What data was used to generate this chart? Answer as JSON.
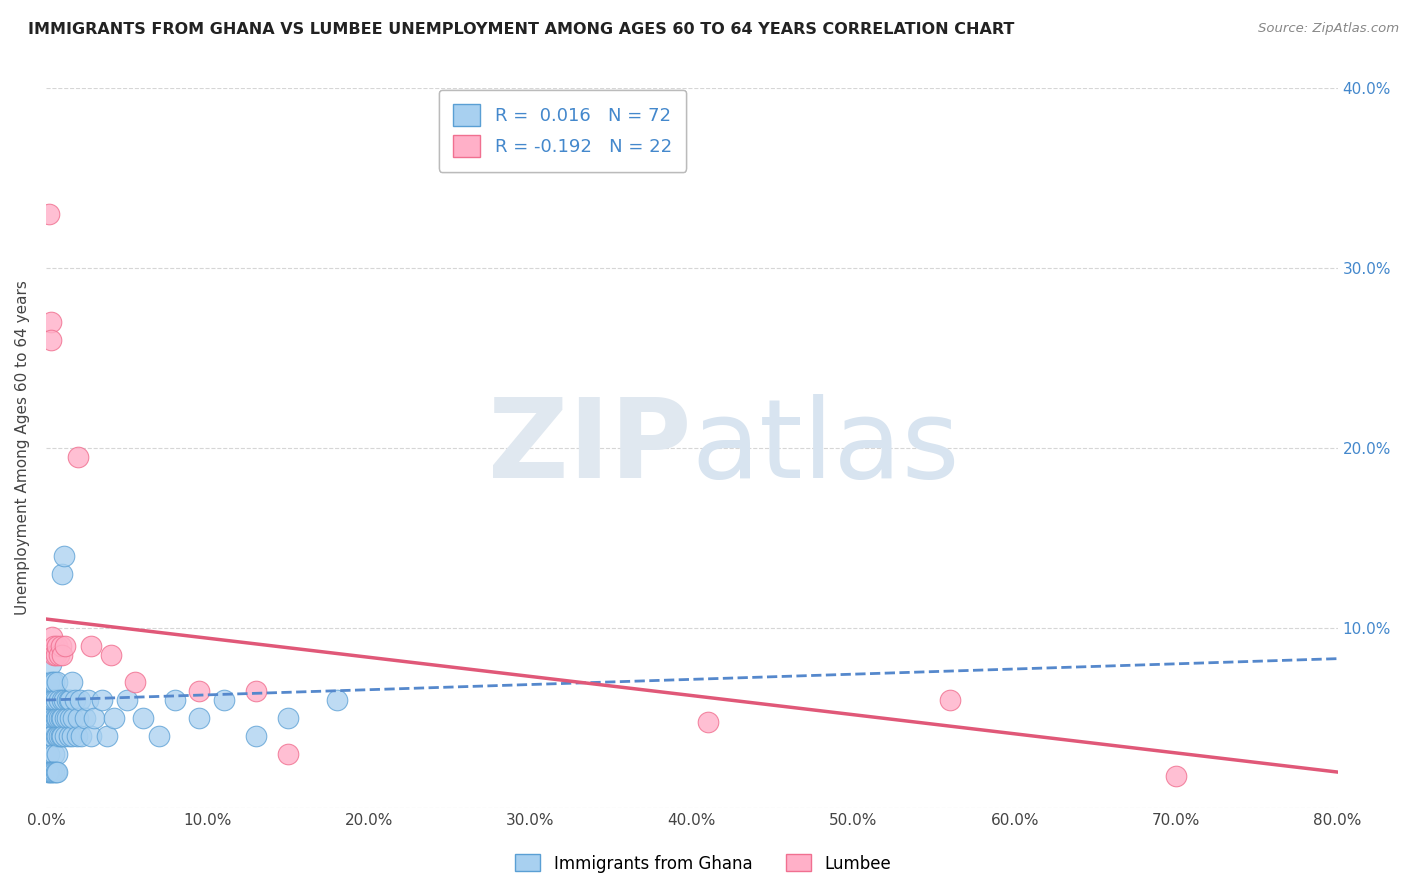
{
  "title": "IMMIGRANTS FROM GHANA VS LUMBEE UNEMPLOYMENT AMONG AGES 60 TO 64 YEARS CORRELATION CHART",
  "source": "Source: ZipAtlas.com",
  "ylabel": "Unemployment Among Ages 60 to 64 years",
  "legend_top_label1": "R =  0.016   N = 72",
  "legend_top_label2": "R = -0.192   N = 22",
  "legend_bottom_label1": "Immigrants from Ghana",
  "legend_bottom_label2": "Lumbee",
  "r_ghana": 0.016,
  "n_ghana": 72,
  "r_lumbee": -0.192,
  "n_lumbee": 22,
  "ghana_fill": "#a8d0f0",
  "ghana_edge": "#5a9fd4",
  "lumbee_fill": "#ffb0c8",
  "lumbee_edge": "#f07090",
  "ghana_line_color": "#5588cc",
  "lumbee_line_color": "#e05878",
  "xlim": [
    0.0,
    0.8
  ],
  "ylim": [
    0.0,
    0.4
  ],
  "yticks_right": [
    0.1,
    0.2,
    0.3,
    0.4
  ],
  "xticks": [
    0.0,
    0.1,
    0.2,
    0.3,
    0.4,
    0.5,
    0.6,
    0.7,
    0.8
  ],
  "ghana_trend_x0": 0.0,
  "ghana_trend_y0": 0.06,
  "ghana_trend_x1": 0.8,
  "ghana_trend_y1": 0.083,
  "lumbee_trend_x0": 0.0,
  "lumbee_trend_y0": 0.105,
  "lumbee_trend_x1": 0.8,
  "lumbee_trend_y1": 0.02,
  "ghana_x": [
    0.001,
    0.001,
    0.002,
    0.002,
    0.002,
    0.003,
    0.003,
    0.003,
    0.004,
    0.004,
    0.004,
    0.005,
    0.005,
    0.005,
    0.005,
    0.006,
    0.006,
    0.006,
    0.007,
    0.007,
    0.007,
    0.007,
    0.008,
    0.008,
    0.008,
    0.009,
    0.009,
    0.01,
    0.01,
    0.01,
    0.01,
    0.011,
    0.011,
    0.012,
    0.012,
    0.013,
    0.013,
    0.014,
    0.014,
    0.015,
    0.015,
    0.016,
    0.016,
    0.017,
    0.018,
    0.019,
    0.02,
    0.021,
    0.022,
    0.024,
    0.026,
    0.028,
    0.03,
    0.035,
    0.038,
    0.042,
    0.05,
    0.06,
    0.07,
    0.08,
    0.095,
    0.11,
    0.13,
    0.15,
    0.18,
    0.001,
    0.002,
    0.003,
    0.004,
    0.005,
    0.006,
    0.007
  ],
  "ghana_y": [
    0.05,
    0.04,
    0.06,
    0.03,
    0.07,
    0.05,
    0.04,
    0.08,
    0.06,
    0.04,
    0.07,
    0.05,
    0.03,
    0.07,
    0.06,
    0.05,
    0.04,
    0.06,
    0.05,
    0.04,
    0.07,
    0.03,
    0.05,
    0.04,
    0.06,
    0.05,
    0.04,
    0.06,
    0.05,
    0.04,
    0.13,
    0.14,
    0.06,
    0.05,
    0.04,
    0.06,
    0.05,
    0.06,
    0.04,
    0.06,
    0.05,
    0.04,
    0.07,
    0.05,
    0.06,
    0.04,
    0.05,
    0.06,
    0.04,
    0.05,
    0.06,
    0.04,
    0.05,
    0.06,
    0.04,
    0.05,
    0.06,
    0.05,
    0.04,
    0.06,
    0.05,
    0.06,
    0.04,
    0.05,
    0.06,
    0.02,
    0.02,
    0.02,
    0.02,
    0.02,
    0.02,
    0.02
  ],
  "lumbee_x": [
    0.002,
    0.003,
    0.003,
    0.004,
    0.005,
    0.005,
    0.006,
    0.007,
    0.008,
    0.009,
    0.01,
    0.012,
    0.02,
    0.028,
    0.04,
    0.055,
    0.095,
    0.13,
    0.15,
    0.41,
    0.56,
    0.7
  ],
  "lumbee_y": [
    0.33,
    0.27,
    0.26,
    0.095,
    0.09,
    0.085,
    0.085,
    0.09,
    0.085,
    0.09,
    0.085,
    0.09,
    0.195,
    0.09,
    0.085,
    0.07,
    0.065,
    0.065,
    0.03,
    0.048,
    0.06,
    0.018
  ]
}
